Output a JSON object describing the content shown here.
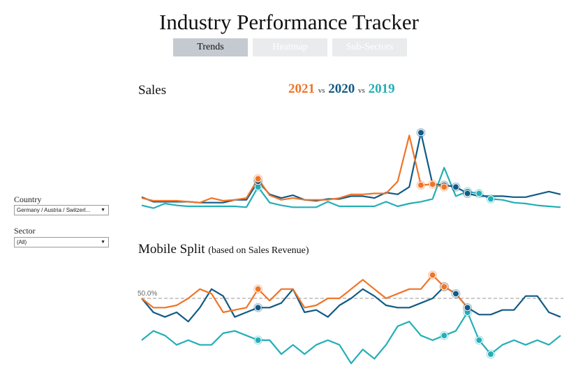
{
  "title": "Industry Performance Tracker",
  "tabs": [
    {
      "label": "Trends",
      "active": true
    },
    {
      "label": "Heatmap",
      "active": false
    },
    {
      "label": "Sub-Sectors",
      "active": false
    }
  ],
  "filters": {
    "country_label": "Country",
    "country_value": "Germany / Austria / Switzerl...",
    "sector_label": "Sector",
    "sector_value": "(All)"
  },
  "legend": {
    "y2021": "2021",
    "vs1": "vs",
    "y2020": "2020",
    "vs2": "vs",
    "y2019": "2019"
  },
  "colors": {
    "y2021": "#f07427",
    "y2020": "#115a86",
    "y2019": "#24aeb6"
  },
  "chart_data": [
    {
      "type": "line",
      "title": "Sales",
      "ylim": [
        0,
        100
      ],
      "xlim": [
        0,
        36
      ],
      "series": [
        {
          "name": "2021",
          "color": "#f07427",
          "x": [
            0,
            1,
            2,
            3,
            4,
            5,
            6,
            7,
            8,
            9,
            10,
            11,
            12,
            13,
            14,
            15,
            16,
            17,
            18,
            19,
            20,
            21,
            22,
            23,
            24,
            25,
            26
          ],
          "y": [
            6,
            3,
            3,
            3,
            2,
            1,
            6,
            3,
            4,
            6,
            27,
            9,
            4,
            6,
            4,
            4,
            4,
            6,
            10,
            10,
            11,
            11,
            24,
            74,
            20,
            21,
            18
          ],
          "markers": [
            10,
            24,
            25,
            26
          ]
        },
        {
          "name": "2020",
          "color": "#115a86",
          "x": [
            0,
            1,
            2,
            3,
            4,
            5,
            6,
            7,
            8,
            9,
            10,
            11,
            12,
            13,
            14,
            15,
            16,
            17,
            18,
            19,
            20,
            21,
            22,
            23,
            24,
            25,
            26,
            27,
            28,
            29,
            30,
            31,
            32,
            33,
            34,
            35,
            36
          ],
          "y": [
            7,
            2,
            2,
            2,
            2,
            1,
            1,
            1,
            4,
            4,
            24,
            10,
            6,
            9,
            4,
            3,
            5,
            5,
            8,
            8,
            6,
            12,
            10,
            18,
            77,
            21,
            20,
            18,
            11,
            8,
            8,
            8,
            7,
            7,
            10,
            13,
            10
          ],
          "markers": [
            10,
            24,
            26,
            27,
            28
          ]
        },
        {
          "name": "2019",
          "color": "#24aeb6",
          "x": [
            0,
            1,
            2,
            3,
            4,
            5,
            6,
            7,
            8,
            9,
            10,
            11,
            12,
            13,
            14,
            15,
            16,
            17,
            18,
            19,
            20,
            21,
            22,
            23,
            24,
            25,
            26,
            27,
            28,
            29,
            30,
            31,
            32,
            33,
            34,
            35,
            36
          ],
          "y": [
            -2,
            -5,
            0,
            -2,
            -3,
            -3,
            -3,
            -3,
            -3,
            -4,
            18,
            1,
            -2,
            -4,
            -4,
            -4,
            2,
            -3,
            -3,
            -3,
            -3,
            2,
            -3,
            0,
            2,
            5,
            39,
            8,
            13,
            11,
            5,
            4,
            1,
            0,
            -2,
            -3,
            -4
          ],
          "markers": [
            10,
            28,
            29,
            30
          ]
        }
      ]
    },
    {
      "type": "line",
      "title": "Mobile Split",
      "subtitle": "(based on Sales Revenue)",
      "reference_line": {
        "value": 50,
        "label": "50.0%"
      },
      "ylim": [
        35,
        56
      ],
      "xlim": [
        0,
        36
      ],
      "series": [
        {
          "name": "2021",
          "color": "#f07427",
          "x": [
            0,
            1,
            2,
            3,
            4,
            5,
            6,
            7,
            8,
            9,
            10,
            11,
            12,
            13,
            14,
            15,
            16,
            17,
            18,
            19,
            20,
            21,
            22,
            23,
            24,
            25,
            26,
            27,
            28
          ],
          "y": [
            50,
            48,
            48,
            48.5,
            50,
            52,
            51,
            47,
            47.5,
            48,
            52,
            49.5,
            52,
            52,
            48,
            48.5,
            50,
            50,
            52,
            54,
            52,
            50,
            51,
            52,
            52,
            55,
            52.5,
            51,
            48
          ],
          "markers": [
            10,
            25,
            26
          ]
        },
        {
          "name": "2020",
          "color": "#115a86",
          "x": [
            0,
            1,
            2,
            3,
            4,
            5,
            6,
            7,
            8,
            9,
            10,
            11,
            12,
            13,
            14,
            15,
            16,
            17,
            18,
            19,
            20,
            21,
            22,
            23,
            24,
            25,
            26,
            27,
            28,
            29,
            30,
            31,
            32,
            33,
            34,
            35,
            36
          ],
          "y": [
            50,
            47,
            46,
            47,
            45,
            48,
            52,
            50.5,
            46,
            47,
            48,
            48,
            49,
            52,
            47,
            47.5,
            46,
            48.5,
            50,
            52,
            50.5,
            48.5,
            48,
            48,
            49,
            50,
            52.5,
            51,
            48,
            46.5,
            46.5,
            47.5,
            47.5,
            50.5,
            50.5,
            47,
            46
          ],
          "markers": [
            10,
            26,
            27,
            28
          ]
        },
        {
          "name": "2019",
          "color": "#24aeb6",
          "x": [
            0,
            1,
            2,
            3,
            4,
            5,
            6,
            7,
            8,
            9,
            10,
            11,
            12,
            13,
            14,
            15,
            16,
            17,
            18,
            19,
            20,
            21,
            22,
            23,
            24,
            25,
            26,
            27,
            28,
            29,
            30,
            31,
            32,
            33,
            34,
            35,
            36
          ],
          "y": [
            41,
            43,
            42,
            40,
            41,
            40,
            40,
            42.5,
            43,
            42,
            41,
            41,
            38,
            40,
            38,
            40,
            41,
            40,
            36,
            39,
            37,
            40,
            44,
            45,
            42,
            41,
            42,
            43,
            47,
            41,
            38,
            40,
            41,
            40,
            41,
            40,
            42
          ],
          "markers": [
            10,
            26,
            28,
            29,
            30
          ]
        }
      ]
    }
  ]
}
